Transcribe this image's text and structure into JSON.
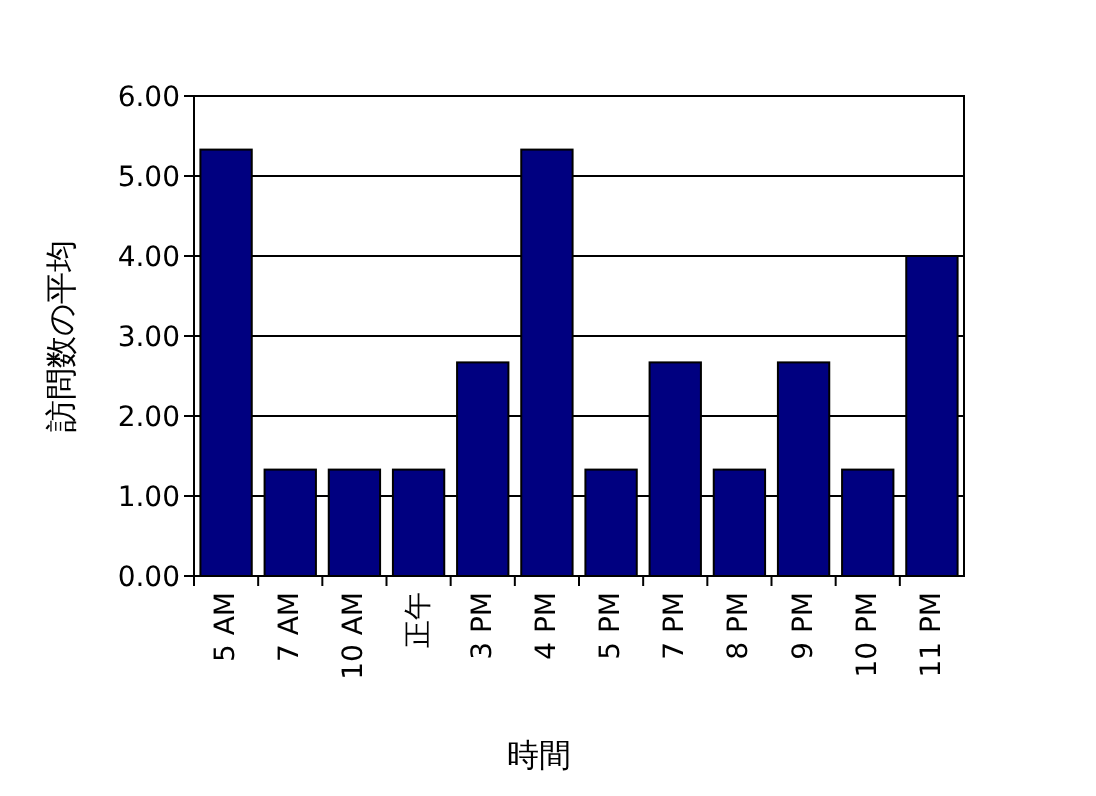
{
  "chart_data": {
    "type": "bar",
    "xlabel": "時間",
    "ylabel": "訪問数の平均",
    "categories": [
      "5 AM",
      "7 AM",
      "10 AM",
      "正午",
      "3 PM",
      "4 PM",
      "5 PM",
      "7 PM",
      "8 PM",
      "9 PM",
      "10 PM",
      "11 PM"
    ],
    "values": [
      5.33,
      1.33,
      1.33,
      1.33,
      2.67,
      5.33,
      1.33,
      2.67,
      1.33,
      2.67,
      1.33,
      4.0
    ],
    "color": "#000080",
    "ylim": [
      0,
      6
    ],
    "yticks": [
      {
        "value": 0,
        "label": "0.00"
      },
      {
        "value": 1,
        "label": "1.00"
      },
      {
        "value": 2,
        "label": "2.00"
      },
      {
        "value": 3,
        "label": "3.00"
      },
      {
        "value": 4,
        "label": "4.00"
      },
      {
        "value": 5,
        "label": "5.00"
      },
      {
        "value": 6,
        "label": "6.00"
      }
    ],
    "grid": "y"
  }
}
